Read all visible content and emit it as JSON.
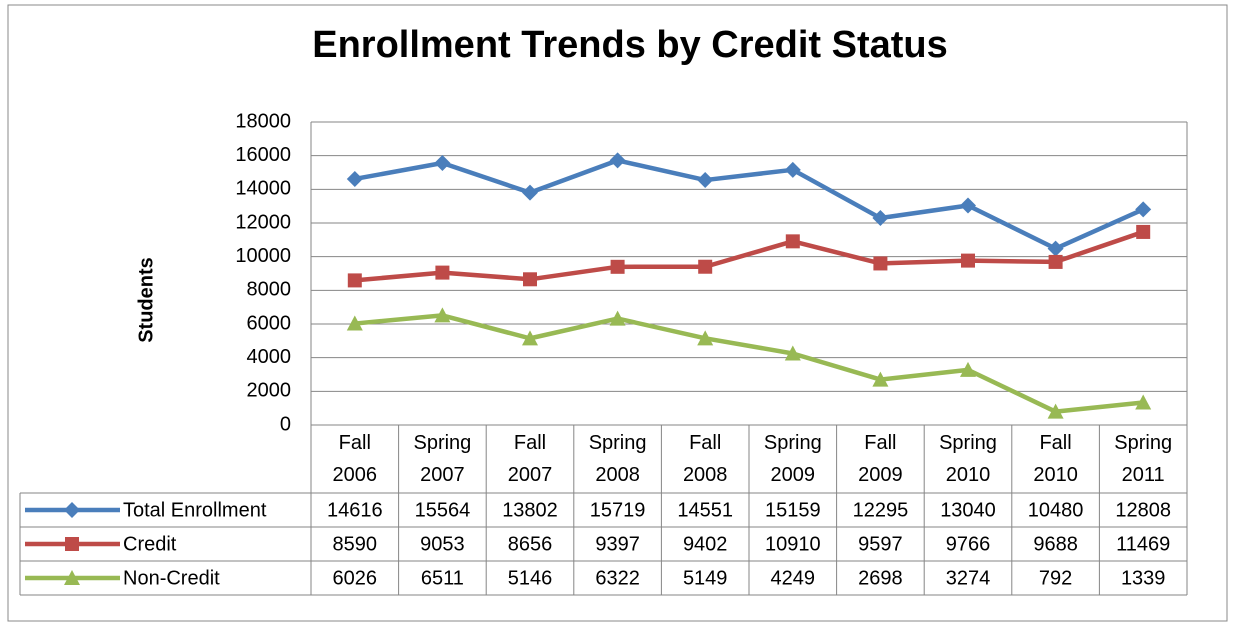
{
  "chart_data": {
    "type": "line",
    "title": "Enrollment Trends by Credit Status",
    "y_label": "Students",
    "categories": [
      "Fall 2006",
      "Spring 2007",
      "Fall 2007",
      "Spring 2008",
      "Fall 2008",
      "Spring 2009",
      "Fall 2009",
      "Spring 2010",
      "Fall 2010",
      "Spring 2011"
    ],
    "series": [
      {
        "name": "Total Enrollment",
        "color": "#4a7ebb",
        "marker": "diamond",
        "values": [
          14616,
          15564,
          13802,
          15719,
          14551,
          15159,
          12295,
          13040,
          10480,
          12808
        ]
      },
      {
        "name": "Credit",
        "color": "#be4b48",
        "marker": "square",
        "values": [
          8590,
          9053,
          8656,
          9397,
          9402,
          10910,
          9597,
          9766,
          9688,
          11469
        ]
      },
      {
        "name": "Non-Credit",
        "color": "#98b954",
        "marker": "triangle",
        "values": [
          6026,
          6511,
          5146,
          6322,
          5149,
          4249,
          2698,
          3274,
          792,
          1339
        ]
      }
    ],
    "ylim": [
      0,
      18000
    ],
    "yticks": [
      0,
      2000,
      4000,
      6000,
      8000,
      10000,
      12000,
      14000,
      16000,
      18000
    ],
    "grid": true,
    "data_table": true
  }
}
